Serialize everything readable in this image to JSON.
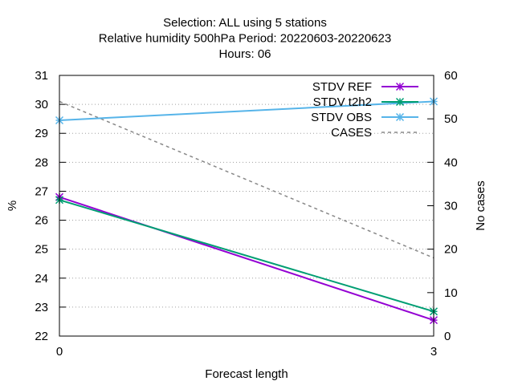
{
  "chart_data": {
    "type": "line",
    "title_lines": [
      "Selection: ALL using      5 stations",
      "Relative humidity 500hPa   Period: 20220603-20220623",
      "Hours:  06"
    ],
    "xlabel": "Forecast length",
    "ylabel": "%",
    "y2label": "No cases",
    "x": [
      0,
      3
    ],
    "xlim": [
      0,
      3
    ],
    "ylim": [
      22,
      31
    ],
    "y2lim": [
      0,
      60
    ],
    "x_ticks": [
      0,
      3
    ],
    "y_ticks": [
      22,
      23,
      24,
      25,
      26,
      27,
      28,
      29,
      30,
      31
    ],
    "y2_ticks": [
      0,
      10,
      20,
      30,
      40,
      50,
      60
    ],
    "grid": true,
    "legend_position": "top-right",
    "series": [
      {
        "name": "STDV REF",
        "axis": "y",
        "color": "#9400d3",
        "dash": "solid",
        "marker": "x",
        "values": [
          26.8,
          22.55
        ]
      },
      {
        "name": "STDV t2h2",
        "axis": "y",
        "color": "#009e73",
        "dash": "solid",
        "marker": "x",
        "values": [
          26.7,
          22.85
        ]
      },
      {
        "name": "STDV OBS",
        "axis": "y",
        "color": "#56b4e9",
        "dash": "solid",
        "marker": "x",
        "values": [
          29.45,
          30.1
        ]
      },
      {
        "name": "CASES",
        "axis": "y2",
        "color": "#888888",
        "dash": "dashed",
        "marker": "",
        "values": [
          54,
          18
        ]
      }
    ]
  }
}
